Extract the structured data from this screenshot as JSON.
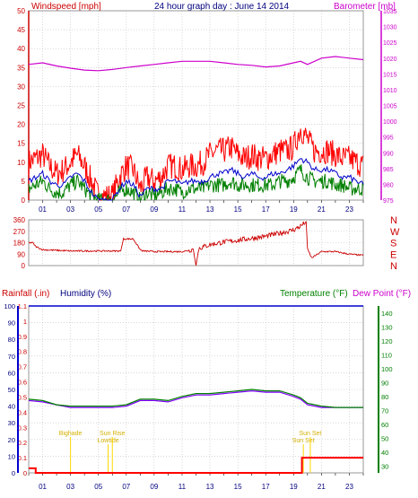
{
  "header": {
    "windspeed_label": "Windspeed [mph]",
    "title": "24 hour graph day : June 14 2014",
    "barometer_label": "Barometer [mb]"
  },
  "bottom_header": {
    "rainfall_label": "Rainfall (.in)",
    "humidity_label": "Humidity (%)",
    "temperature_label": "Temperature (°F)",
    "dewpoint_label": "Dew Point (°F)"
  },
  "colors": {
    "wind": "#ff0000",
    "gust_avg": "#0000cc",
    "gust_min": "#008000",
    "barometer": "#cc00cc",
    "direction": "#cc0000",
    "rain": "#ff0000",
    "humidity": "#0000cc",
    "temperature": "#008000",
    "dewpoint": "#8000ff",
    "annotation": "#ffd700",
    "grid": "#c0c0c0"
  },
  "chart_data": [
    {
      "type": "line",
      "panel": "wind-barometer",
      "x_tick_labels": [
        "01",
        "03",
        "05",
        "07",
        "09",
        "11",
        "13",
        "15",
        "17",
        "19",
        "21",
        "23"
      ],
      "x_hours": [
        1,
        3,
        5,
        7,
        9,
        11,
        13,
        15,
        17,
        19,
        21,
        23
      ],
      "xlim": [
        0,
        24
      ],
      "y_left_label": "Windspeed [mph]",
      "y_left_ticks": [
        "0",
        "5",
        "10",
        "15",
        "20",
        "25",
        "30",
        "35",
        "40",
        "45",
        "50"
      ],
      "ylim_left": [
        0,
        50
      ],
      "y_right_label": "Barometer [mb]",
      "y_right_ticks": [
        "975",
        "980",
        "985",
        "990",
        "995",
        "1000",
        "1005",
        "1010",
        "1015",
        "1020",
        "1025",
        "1030",
        "1035"
      ],
      "ylim_right": [
        975,
        1035
      ],
      "series": [
        {
          "key": "wind_gust",
          "hours": [
            0,
            1,
            1.5,
            2,
            2.5,
            3,
            3.5,
            4,
            4.5,
            5,
            5.5,
            6,
            6.5,
            7,
            7.5,
            8,
            8.5,
            9,
            9.5,
            10,
            10.5,
            11,
            11.5,
            12,
            12.5,
            13,
            13.5,
            14,
            14.5,
            15,
            15.5,
            16,
            16.5,
            17,
            17.5,
            18,
            18.5,
            19,
            19.5,
            20,
            20.5,
            21,
            21.5,
            22,
            22.5,
            23,
            23.5,
            24
          ],
          "values": [
            10,
            12,
            9,
            7,
            8,
            10,
            12,
            9,
            5,
            1,
            1,
            1,
            6,
            9,
            8,
            3,
            6,
            5,
            6,
            9,
            9,
            8,
            9,
            9,
            10,
            12,
            13,
            13,
            14,
            12,
            11,
            12,
            11,
            11,
            12,
            13,
            13,
            14,
            19,
            16,
            13,
            13,
            13,
            12,
            11,
            11,
            10,
            9
          ]
        },
        {
          "key": "wind_avg",
          "hours": [
            0,
            1,
            1.5,
            2,
            2.5,
            3,
            3.5,
            4,
            4.5,
            5,
            5.5,
            6,
            6.5,
            7,
            7.5,
            8,
            8.5,
            9,
            9.5,
            10,
            10.5,
            11,
            11.5,
            12,
            12.5,
            13,
            13.5,
            14,
            14.5,
            15,
            15.5,
            16,
            16.5,
            17,
            17.5,
            18,
            18.5,
            19,
            19.5,
            20,
            20.5,
            21,
            21.5,
            22,
            22.5,
            23,
            23.5,
            24
          ],
          "values": [
            5,
            7,
            5,
            4,
            4,
            6,
            7,
            5,
            2,
            0,
            0,
            0,
            3,
            5,
            4,
            1,
            3,
            3,
            3,
            5,
            5,
            4,
            5,
            5,
            5,
            6,
            7,
            7,
            8,
            7,
            6,
            7,
            6,
            6,
            7,
            7,
            8,
            9,
            11,
            10,
            8,
            8,
            8,
            7,
            6,
            6,
            5,
            4
          ]
        },
        {
          "key": "wind_min",
          "hours": [
            0,
            1,
            1.5,
            2,
            2.5,
            3,
            3.5,
            4,
            4.5,
            5,
            5.5,
            6,
            6.5,
            7,
            7.5,
            8,
            8.5,
            9,
            9.5,
            10,
            10.5,
            11,
            11.5,
            12,
            12.5,
            13,
            13.5,
            14,
            14.5,
            15,
            15.5,
            16,
            16.5,
            17,
            17.5,
            18,
            18.5,
            19,
            19.5,
            20,
            20.5,
            21,
            21.5,
            22,
            22.5,
            23,
            23.5,
            24
          ],
          "values": [
            3,
            5,
            3,
            2,
            2,
            4,
            5,
            3,
            1,
            0,
            0,
            0,
            2,
            3,
            2,
            0,
            2,
            1,
            2,
            3,
            3,
            2,
            3,
            3,
            3,
            4,
            4,
            4,
            5,
            4,
            4,
            4,
            4,
            4,
            4,
            5,
            5,
            6,
            8,
            6,
            5,
            5,
            5,
            4,
            4,
            3,
            3,
            3
          ]
        },
        {
          "key": "barometer",
          "hours": [
            0,
            1,
            2,
            3,
            4,
            5,
            6,
            7,
            8,
            9,
            10,
            11,
            12,
            13,
            14,
            15,
            16,
            17,
            18,
            19,
            19.5,
            20,
            21,
            22,
            23,
            24
          ],
          "values": [
            1018,
            1018.5,
            1017.5,
            1016.8,
            1016.2,
            1016,
            1016.4,
            1017,
            1017.5,
            1018,
            1018.5,
            1019,
            1019,
            1019,
            1018.5,
            1018,
            1017.7,
            1017.2,
            1017.5,
            1018.5,
            1019,
            1018,
            1020,
            1020.5,
            1020,
            1019.5
          ]
        }
      ]
    },
    {
      "type": "line",
      "panel": "wind-direction",
      "x_tick_labels": [
        "01",
        "03",
        "05",
        "07",
        "09",
        "11",
        "13",
        "15",
        "17",
        "19",
        "21",
        "23"
      ],
      "xlim": [
        0,
        24
      ],
      "y_ticks": [
        "0",
        "90",
        "180",
        "270",
        "360"
      ],
      "ylim": [
        0,
        360
      ],
      "right_labels": [
        "N",
        "W",
        "S",
        "E",
        "N"
      ],
      "series": [
        {
          "key": "direction",
          "hours": [
            0,
            0.3,
            0.5,
            1,
            2,
            3,
            4,
            5,
            6,
            6.6,
            6.8,
            7.5,
            8,
            8.2,
            9,
            10,
            11,
            11.5,
            11.8,
            12,
            12.2,
            13,
            14,
            15,
            16,
            17,
            18,
            19,
            19.5,
            19.9,
            20,
            20.3,
            21,
            22,
            23,
            24
          ],
          "values": [
            180,
            180,
            150,
            125,
            120,
            115,
            115,
            115,
            115,
            115,
            210,
            210,
            125,
            115,
            110,
            110,
            110,
            120,
            130,
            0,
            135,
            165,
            185,
            200,
            215,
            230,
            255,
            280,
            310,
            345,
            130,
            60,
            110,
            110,
            90,
            80
          ]
        }
      ]
    },
    {
      "type": "line",
      "panel": "rain-humidity-temperature",
      "x_tick_labels": [
        "01",
        "03",
        "05",
        "07",
        "09",
        "11",
        "13",
        "15",
        "17",
        "19",
        "21",
        "23"
      ],
      "xlim": [
        0,
        24
      ],
      "y_left_ticks": [
        "0",
        "10",
        "20",
        "30",
        "40",
        "50",
        "60",
        "70",
        "80",
        "90",
        "100"
      ],
      "ylim_left": [
        0,
        100
      ],
      "rain_ticks": [
        "0",
        "0.1",
        "0.2",
        "0.3",
        "0.4",
        "0.5",
        "0.6",
        "0.7",
        "0.8",
        "0.9",
        "1",
        "1.1"
      ],
      "ylim_rain": [
        0,
        1.1
      ],
      "y_right_ticks": [
        "30",
        "40",
        "50",
        "60",
        "70",
        "80",
        "90",
        "100",
        "110",
        "120",
        "130",
        "140"
      ],
      "ylim_right": [
        25,
        145
      ],
      "annotations": [
        {
          "label": "Bighade",
          "hour": 3
        },
        {
          "label": "Lowtide",
          "hour": 5.7
        },
        {
          "label": "Sun Rise",
          "hour": 6
        },
        {
          "label": "Sun Set",
          "hour": 19.7
        },
        {
          "label": "Sun Set",
          "hour": 20.2
        }
      ],
      "series": [
        {
          "key": "humidity",
          "hours": [
            0,
            24
          ],
          "values": [
            100,
            100
          ]
        },
        {
          "key": "rain",
          "hours": [
            0,
            0.5,
            0.5,
            19.6,
            19.6,
            24
          ],
          "values": [
            0.03,
            0.03,
            0,
            0,
            0.1,
            0.1
          ]
        },
        {
          "key": "temperature",
          "hours": [
            0,
            1,
            2,
            3,
            4,
            5,
            6,
            7,
            8,
            9,
            10,
            11,
            12,
            13,
            14,
            15,
            16,
            17,
            18,
            19,
            19.5,
            20,
            21,
            22,
            23,
            24
          ],
          "values": [
            78,
            77,
            74,
            73,
            73,
            73,
            73,
            74,
            78,
            78,
            77,
            80,
            82,
            82,
            83,
            84,
            85,
            84,
            84,
            81,
            79,
            75,
            73,
            72,
            72,
            72
          ]
        },
        {
          "key": "dewpoint",
          "hours": [
            0,
            1,
            2,
            3,
            4,
            5,
            6,
            7,
            8,
            9,
            10,
            11,
            12,
            13,
            14,
            15,
            16,
            17,
            18,
            19,
            19.5,
            20,
            21,
            22,
            23,
            24
          ],
          "values": [
            77,
            76,
            74,
            72,
            72,
            72,
            72,
            73,
            77,
            77,
            76,
            79,
            81,
            81,
            82,
            83,
            84,
            83,
            83,
            80,
            78,
            74,
            72,
            72,
            72,
            72
          ]
        }
      ]
    }
  ]
}
